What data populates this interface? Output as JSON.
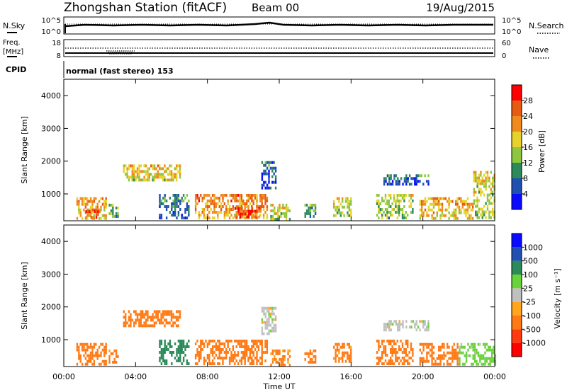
{
  "header": {
    "title": "Zhongshan Station (fitACF)",
    "beam": "Beam 00",
    "date": "19/Aug/2015"
  },
  "top_panels": {
    "nsky_label": "N.Sky",
    "nsky_tick_top": "10^5",
    "nsky_tick_bottom": "10^0",
    "nsearch_label": "N.Search",
    "nsearch_tick_top": "10^5",
    "nsearch_tick_bottom": "10^0",
    "freq_label": "Freq.",
    "freq_unit": "[MHz]",
    "freq_tick_top": "18",
    "freq_tick_bottom": "8",
    "nave_label": "Nave",
    "nave_tick_top": "60",
    "nave_tick_bottom": "0",
    "cpid_label": "CPID",
    "cpid_value": "normal (fast stereo) 153"
  },
  "colors": {
    "power_scale": [
      "#0a0aff",
      "#1f4fb0",
      "#2c8a5a",
      "#8ec63f",
      "#e6d22a",
      "#f08a1e",
      "#e85a12",
      "#ff0000"
    ],
    "velocity_scale": [
      "#ff0000",
      "#ff3a10",
      "#ff7a14",
      "#ffa51e",
      "#c0c0c0",
      "#6ad23a",
      "#2c8a5a",
      "#1f4fb0",
      "#0a0aff"
    ]
  },
  "chart_data": [
    {
      "type": "heatmap",
      "name": "power",
      "ylabel": "Slant Range [km]",
      "yticks": [
        "1000",
        "2000",
        "3000",
        "4000"
      ],
      "ylim": [
        180,
        4500
      ],
      "colorbar_label": "Power [dB]",
      "colorbar_ticks": [
        "4",
        "8",
        "12",
        "16",
        "20",
        "24",
        "28"
      ],
      "colorbar_range": [
        0,
        32
      ],
      "patches": [
        {
          "t0": 0.7,
          "t1": 2.4,
          "r0": 250,
          "r1": 900,
          "value": 22
        },
        {
          "t0": 1.2,
          "t1": 2.0,
          "r0": 250,
          "r1": 500,
          "value": 28
        },
        {
          "t0": 2.5,
          "t1": 3.0,
          "r0": 300,
          "r1": 700,
          "value": 14
        },
        {
          "t0": 3.3,
          "t1": 6.5,
          "r0": 1400,
          "r1": 1900,
          "value": 20
        },
        {
          "t0": 5.3,
          "t1": 7.0,
          "r0": 300,
          "r1": 1000,
          "value": 10
        },
        {
          "t0": 7.3,
          "t1": 11.3,
          "r0": 250,
          "r1": 1000,
          "value": 24
        },
        {
          "t0": 9.5,
          "t1": 11.0,
          "r0": 300,
          "r1": 600,
          "value": 28
        },
        {
          "t0": 11.0,
          "t1": 11.8,
          "r0": 1200,
          "r1": 2000,
          "value": 8
        },
        {
          "t0": 11.5,
          "t1": 12.6,
          "r0": 250,
          "r1": 700,
          "value": 18
        },
        {
          "t0": 13.4,
          "t1": 14.0,
          "r0": 300,
          "r1": 700,
          "value": 12
        },
        {
          "t0": 15.0,
          "t1": 16.0,
          "r0": 300,
          "r1": 900,
          "value": 18
        },
        {
          "t0": 17.4,
          "t1": 19.4,
          "r0": 250,
          "r1": 1000,
          "value": 16
        },
        {
          "t0": 17.8,
          "t1": 20.3,
          "r0": 1300,
          "r1": 1600,
          "value": 8
        },
        {
          "t0": 19.8,
          "t1": 22.8,
          "r0": 250,
          "r1": 900,
          "value": 22
        },
        {
          "t0": 22.8,
          "t1": 24.0,
          "r0": 250,
          "r1": 1700,
          "value": 18
        }
      ]
    },
    {
      "type": "heatmap",
      "name": "velocity",
      "ylabel": "Slant Range [km]",
      "yticks": [
        "1000",
        "2000",
        "3000",
        "4000"
      ],
      "ylim": [
        180,
        4500
      ],
      "xlabel": "Time UT",
      "xticks": [
        "00:00",
        "04:00",
        "08:00",
        "12:00",
        "16:00",
        "20:00",
        "00:00"
      ],
      "xlim": [
        0,
        24
      ],
      "colorbar_label": "Velocity [m s⁻¹]",
      "colorbar_ticks": [
        "1000",
        "500",
        "100",
        "25",
        "-25",
        "-100",
        "-500",
        "-1000"
      ],
      "patches": [
        {
          "t0": 0.7,
          "t1": 2.4,
          "r0": 250,
          "r1": 900,
          "value": -300
        },
        {
          "t0": 2.5,
          "t1": 3.0,
          "r0": 300,
          "r1": 700,
          "value": -150
        },
        {
          "t0": 3.3,
          "t1": 6.5,
          "r0": 1400,
          "r1": 1900,
          "value": -200
        },
        {
          "t0": 5.3,
          "t1": 7.0,
          "r0": 300,
          "r1": 1000,
          "value": 200
        },
        {
          "t0": 7.3,
          "t1": 11.3,
          "r0": 250,
          "r1": 1000,
          "value": -300
        },
        {
          "t0": 11.0,
          "t1": 11.8,
          "r0": 1200,
          "r1": 2000,
          "value": 0
        },
        {
          "t0": 11.5,
          "t1": 12.6,
          "r0": 250,
          "r1": 700,
          "value": -120
        },
        {
          "t0": 13.4,
          "t1": 14.0,
          "r0": 300,
          "r1": 700,
          "value": -300
        },
        {
          "t0": 15.0,
          "t1": 16.0,
          "r0": 300,
          "r1": 900,
          "value": -150
        },
        {
          "t0": 17.4,
          "t1": 19.4,
          "r0": 250,
          "r1": 1000,
          "value": -300
        },
        {
          "t0": 17.8,
          "t1": 20.3,
          "r0": 1300,
          "r1": 1600,
          "value": 0
        },
        {
          "t0": 19.8,
          "t1": 22.0,
          "r0": 250,
          "r1": 900,
          "value": -250
        },
        {
          "t0": 22.0,
          "t1": 24.0,
          "r0": 250,
          "r1": 900,
          "value": 50
        }
      ]
    }
  ]
}
